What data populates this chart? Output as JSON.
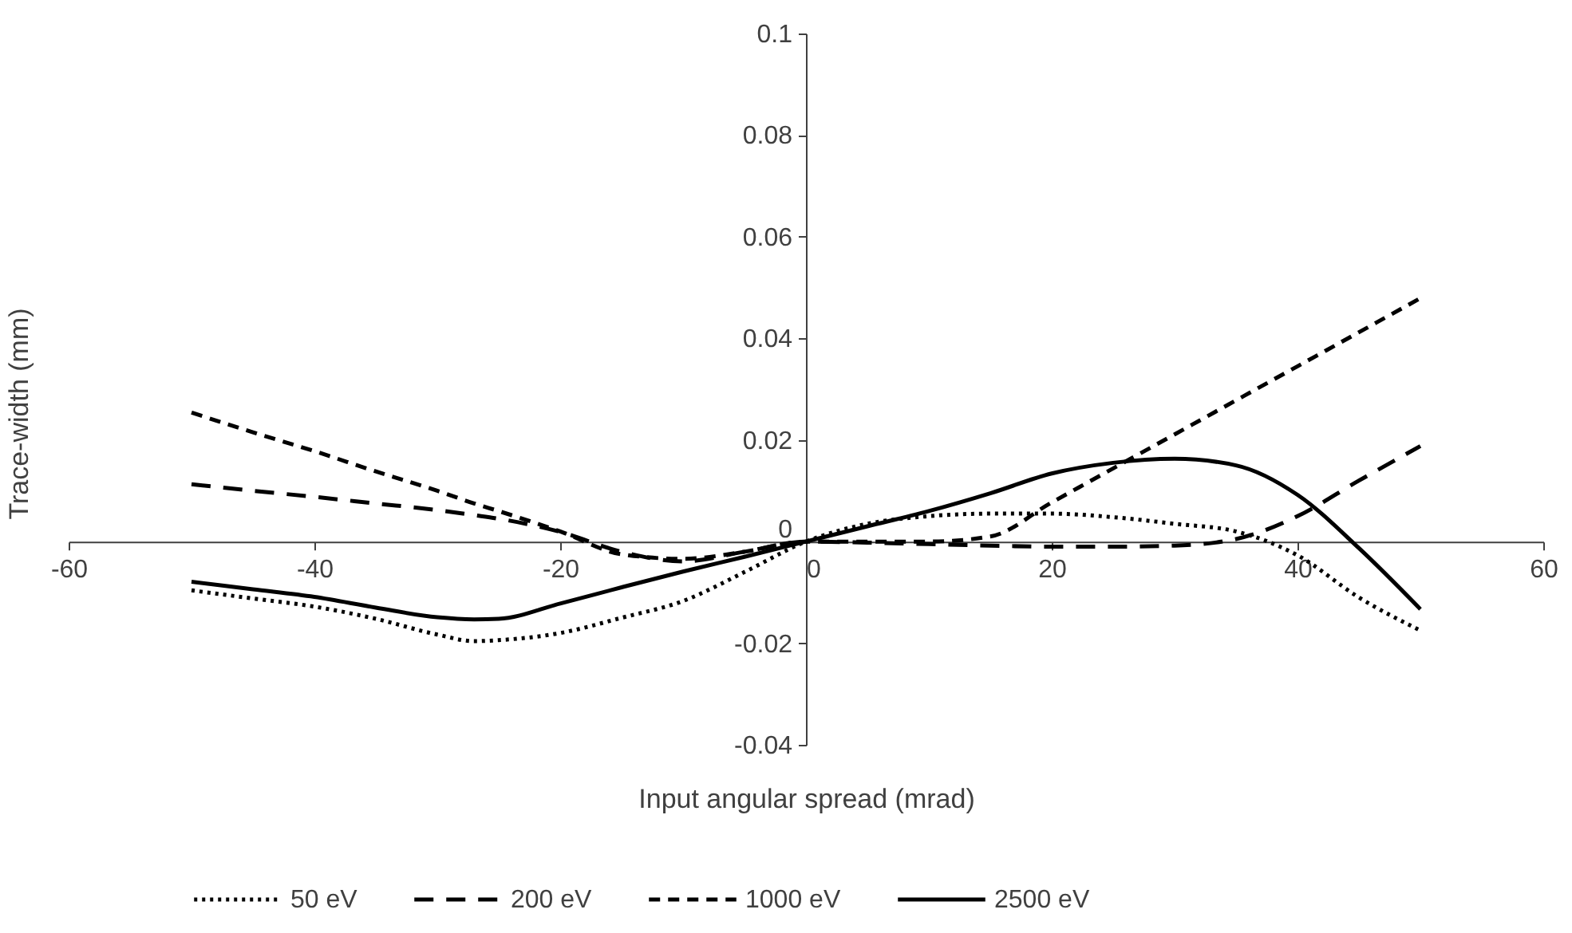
{
  "chart_data": {
    "type": "line",
    "xlabel": "Input angular spread (mrad)",
    "ylabel": "Trace-width (mm)",
    "x": [
      -50,
      -45,
      -40,
      -35,
      -30,
      -27,
      -25,
      -20,
      -15,
      -10,
      -5,
      0,
      5,
      10,
      15,
      20,
      25,
      30,
      35,
      40,
      45,
      50
    ],
    "series": [
      {
        "name": "50 eV",
        "color": "#000000",
        "line_style": "dotted",
        "values": [
          -0.0096,
          -0.0112,
          -0.0128,
          -0.0152,
          -0.0183,
          -0.0196,
          -0.0194,
          -0.018,
          -0.015,
          -0.0117,
          -0.006,
          0,
          0.0035,
          0.005,
          0.0055,
          0.0055,
          0.0048,
          0.0035,
          0.002,
          -0.0027,
          -0.011,
          -0.0175
        ]
      },
      {
        "name": "200 eV",
        "color": "#000000",
        "line_style": "dashed",
        "values": [
          0.0113,
          0.01,
          0.0088,
          0.0075,
          0.0062,
          0.0052,
          0.0045,
          0.0019,
          -0.002,
          -0.0039,
          -0.002,
          0,
          -0.0002,
          -0.0005,
          -0.0008,
          -0.001,
          -0.001,
          -0.0008,
          0.0005,
          0.005,
          0.012,
          0.0188
        ]
      },
      {
        "name": "1000 eV",
        "color": "#000000",
        "line_style": "dashed",
        "values": [
          0.0254,
          0.0215,
          0.0178,
          0.0138,
          0.01,
          0.0075,
          0.006,
          0.002,
          -0.0025,
          -0.0034,
          -0.002,
          0,
          0,
          0,
          0.001,
          0.0077,
          0.0144,
          0.0211,
          0.0278,
          0.0345,
          0.0412,
          0.0479
        ]
      },
      {
        "name": "2500 eV",
        "color": "#000000",
        "line_style": "solid",
        "values": [
          -0.0079,
          -0.0094,
          -0.0109,
          -0.013,
          -0.0149,
          -0.0153,
          -0.0152,
          -0.0122,
          -0.009,
          -0.0059,
          -0.003,
          0,
          0.003,
          0.006,
          0.0095,
          0.0134,
          0.0155,
          0.0163,
          0.015,
          0.0092,
          -0.0013,
          -0.0133
        ]
      }
    ],
    "xlim": [
      -60,
      60
    ],
    "xticks": [
      -60,
      -40,
      -20,
      0,
      20,
      40,
      60
    ],
    "ylim": [
      -0.04,
      0.1
    ],
    "yticks": [
      -0.04,
      -0.02,
      0,
      0.02,
      0.04,
      0.06,
      0.08,
      0.1
    ],
    "grid": false,
    "legend": "bottom"
  }
}
